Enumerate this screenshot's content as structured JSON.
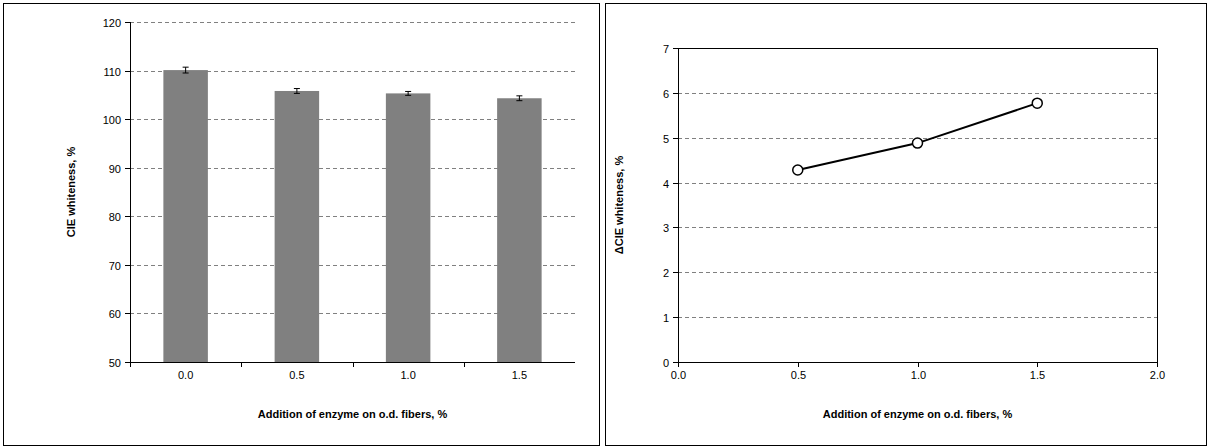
{
  "chart_data": [
    {
      "type": "bar",
      "x_label": "Addition of enzyme on o.d. fibers, %",
      "y_label": "CIE whiteness, %",
      "categories": [
        "0.0",
        "0.5",
        "1.0",
        "1.5"
      ],
      "values": [
        110.1,
        105.8,
        105.3,
        104.3
      ],
      "errors": [
        0.6,
        0.5,
        0.4,
        0.5
      ],
      "color": "#808080",
      "ylim": [
        50,
        120
      ],
      "yticks": [
        50,
        60,
        70,
        80,
        90,
        100,
        110,
        120
      ],
      "grid": true
    },
    {
      "type": "line",
      "x_label": "Addition of enzyme on o.d. fibers, %",
      "y_label": "ΔCIE whiteness, %",
      "x": [
        0.5,
        1.0,
        1.5
      ],
      "values": [
        4.28,
        4.88,
        5.77
      ],
      "color": "#000000",
      "marker": "circle",
      "xlim": [
        0,
        2
      ],
      "xticks": [
        {
          "value": 0,
          "label": "0.0"
        },
        {
          "value": 0.5,
          "label": "0.5"
        },
        {
          "value": 1,
          "label": "1.0"
        },
        {
          "value": 1.5,
          "label": "1.5"
        },
        {
          "value": 2,
          "label": "2.0"
        }
      ],
      "ylim": [
        0,
        7
      ],
      "yticks": [
        0,
        1,
        2,
        3,
        4,
        5,
        6,
        7
      ],
      "grid": true
    }
  ]
}
